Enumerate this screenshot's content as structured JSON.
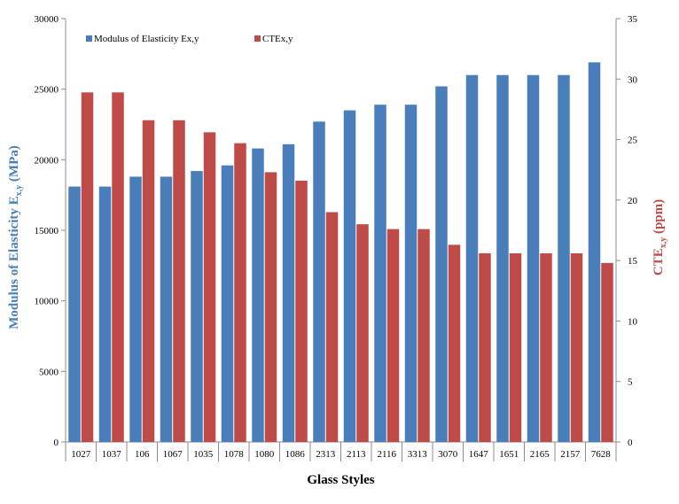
{
  "chart_data": {
    "type": "bar",
    "xlabel": "Glass Styles",
    "ylabel_left": {
      "main": "Modulus of Elasticity  E",
      "sub": "x,y",
      "tail": " (MPa)"
    },
    "ylabel_right": {
      "main": "CTE",
      "sub": "x,y",
      "tail": " (ppm)"
    },
    "categories": [
      "1027",
      "1037",
      "106",
      "1067",
      "1035",
      "1078",
      "1080",
      "1086",
      "2313",
      "2113",
      "2116",
      "3313",
      "3070",
      "1647",
      "1651",
      "2165",
      "2157",
      "7628"
    ],
    "series": [
      {
        "name": "Modulus of Elasticity Ex,y",
        "axis": "left",
        "color": "#4a7ebb",
        "values": [
          18100,
          18100,
          18800,
          18800,
          19200,
          19600,
          20800,
          21100,
          22700,
          23500,
          23900,
          23900,
          25200,
          26000,
          26000,
          26000,
          26000,
          26900
        ]
      },
      {
        "name": "CTEx,y",
        "axis": "right",
        "color": "#be4b48",
        "values": [
          28.9,
          28.9,
          26.6,
          26.6,
          25.6,
          24.7,
          22.3,
          21.6,
          19.0,
          18.0,
          17.6,
          17.6,
          16.3,
          15.6,
          15.6,
          15.6,
          15.6,
          14.8
        ]
      }
    ],
    "ylim_left": [
      0,
      30000
    ],
    "yticks_left": [
      "0",
      "5000",
      "10000",
      "15000",
      "20000",
      "25000",
      "30000"
    ],
    "ylim_right": [
      0,
      35
    ],
    "yticks_right": [
      "0",
      "5",
      "10",
      "15",
      "20",
      "25",
      "30",
      "35"
    ],
    "grid": false,
    "legend_position": "top-left"
  }
}
